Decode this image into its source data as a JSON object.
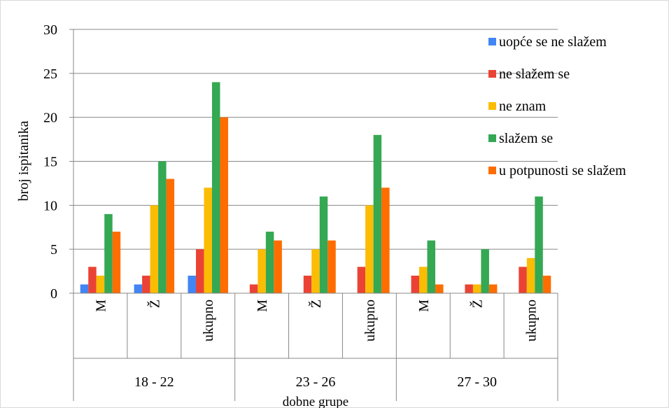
{
  "chart_data": {
    "type": "bar",
    "title": "",
    "xlabel": "dobne grupe",
    "ylabel": "broj ispitanika",
    "ylim": [
      0,
      30
    ],
    "yticks": [
      0,
      5,
      10,
      15,
      20,
      25,
      30
    ],
    "grid": true,
    "legend_position": "top-right",
    "groups": [
      {
        "label": "18 - 22",
        "categories": [
          "M",
          "Ž",
          "ukupno"
        ]
      },
      {
        "label": "23 - 26",
        "categories": [
          "M",
          "Ž",
          "ukupno"
        ]
      },
      {
        "label": "27 - 30",
        "categories": [
          "M",
          "Ž",
          "ukupno"
        ]
      }
    ],
    "series": [
      {
        "name": "uopće se ne slažem",
        "color": "#4285f4",
        "values": [
          1,
          1,
          2,
          0,
          0,
          0,
          0,
          0,
          0
        ]
      },
      {
        "name": "ne slažem se",
        "color": "#ea4335",
        "values": [
          3,
          2,
          5,
          1,
          2,
          3,
          2,
          1,
          3
        ]
      },
      {
        "name": "ne znam",
        "color": "#fbbc04",
        "values": [
          2,
          10,
          12,
          5,
          5,
          10,
          3,
          1,
          4
        ]
      },
      {
        "name": "slažem se",
        "color": "#34a853",
        "values": [
          9,
          15,
          24,
          7,
          11,
          18,
          6,
          5,
          11
        ]
      },
      {
        "name": "u potpunosti se slažem",
        "color": "#ff6d01",
        "values": [
          7,
          13,
          20,
          6,
          6,
          12,
          1,
          1,
          2
        ]
      }
    ]
  }
}
